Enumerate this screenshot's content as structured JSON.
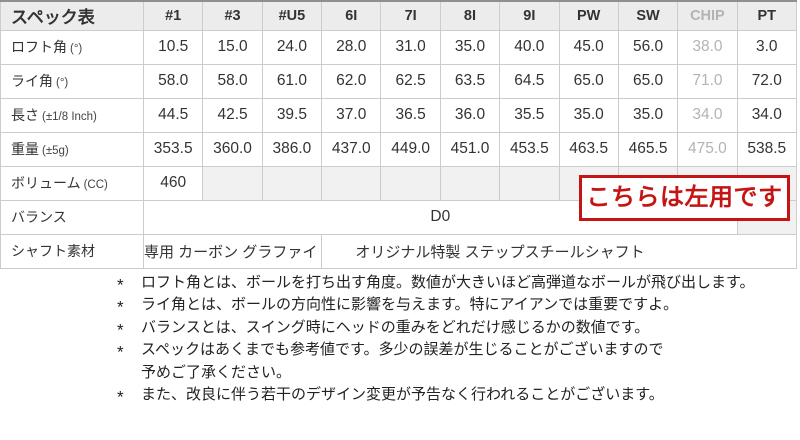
{
  "table": {
    "title": "スペック表",
    "columns": [
      {
        "label": "#1"
      },
      {
        "label": "#3"
      },
      {
        "label": "#U5"
      },
      {
        "label": "6I"
      },
      {
        "label": "7I"
      },
      {
        "label": "8I"
      },
      {
        "label": "9I"
      },
      {
        "label": "PW"
      },
      {
        "label": "SW"
      },
      {
        "label": "CHIP",
        "muted": true
      },
      {
        "label": "PT"
      }
    ],
    "rows": [
      {
        "label": "ロフト角",
        "unit": "(°)",
        "cells": [
          {
            "t": "10.5"
          },
          {
            "t": "15.0"
          },
          {
            "t": "24.0"
          },
          {
            "t": "28.0"
          },
          {
            "t": "31.0"
          },
          {
            "t": "35.0"
          },
          {
            "t": "40.0"
          },
          {
            "t": "45.0"
          },
          {
            "t": "56.0"
          },
          {
            "t": "38.0",
            "muted": true
          },
          {
            "t": "3.0"
          }
        ]
      },
      {
        "label": "ライ角",
        "unit": "(°)",
        "cells": [
          {
            "t": "58.0"
          },
          {
            "t": "58.0"
          },
          {
            "t": "61.0"
          },
          {
            "t": "62.0"
          },
          {
            "t": "62.5"
          },
          {
            "t": "63.5"
          },
          {
            "t": "64.5"
          },
          {
            "t": "65.0"
          },
          {
            "t": "65.0"
          },
          {
            "t": "71.0",
            "muted": true
          },
          {
            "t": "72.0"
          }
        ]
      },
      {
        "label": "長さ",
        "unit": "(±1/8 Inch)",
        "cells": [
          {
            "t": "44.5"
          },
          {
            "t": "42.5"
          },
          {
            "t": "39.5"
          },
          {
            "t": "37.0"
          },
          {
            "t": "36.5"
          },
          {
            "t": "36.0"
          },
          {
            "t": "35.5"
          },
          {
            "t": "35.0"
          },
          {
            "t": "35.0"
          },
          {
            "t": "34.0",
            "muted": true
          },
          {
            "t": "34.0"
          }
        ]
      },
      {
        "label": "重量",
        "unit": "(±5g)",
        "cells": [
          {
            "t": "353.5"
          },
          {
            "t": "360.0"
          },
          {
            "t": "386.0"
          },
          {
            "t": "437.0"
          },
          {
            "t": "449.0"
          },
          {
            "t": "451.0"
          },
          {
            "t": "453.5"
          },
          {
            "t": "463.5"
          },
          {
            "t": "465.5"
          },
          {
            "t": "475.0",
            "muted": true
          },
          {
            "t": "538.5"
          }
        ]
      },
      {
        "label": "ボリューム",
        "unit": "(CC)",
        "cells": [
          {
            "t": "460"
          },
          {
            "t": "",
            "grey": true
          },
          {
            "t": "",
            "grey": true
          },
          {
            "t": "",
            "grey": true
          },
          {
            "t": "",
            "grey": true
          },
          {
            "t": "",
            "grey": true
          },
          {
            "t": "",
            "grey": true
          },
          {
            "t": "",
            "grey": true
          },
          {
            "t": "",
            "grey": true
          },
          {
            "t": "",
            "grey": true
          },
          {
            "t": "",
            "grey": true
          }
        ]
      },
      {
        "label": "バランス",
        "unit": "",
        "cells": [
          {
            "t": "D0",
            "span": 10
          },
          {
            "t": "",
            "span": 1,
            "grey": true
          }
        ]
      },
      {
        "label": "シャフト素材",
        "unit": "",
        "cells": [
          {
            "t": "専用 カーボン グラファイト",
            "span": 3,
            "shaft": true
          },
          {
            "t": "オリジナル特製 ステップスチールシャフト",
            "span": 8,
            "shaft": true
          }
        ]
      }
    ]
  },
  "badge": {
    "text": "こちらは左用です",
    "color": "#c51414"
  },
  "notes": [
    {
      "marker": "*",
      "text": "ロフト角とは、ボールを打ち出す角度。数値が大きいほど高弾道なボールが飛び出します。"
    },
    {
      "marker": "*",
      "text": "ライ角とは、ボールの方向性に影響を与えます。特にアイアンでは重要ですよ。"
    },
    {
      "marker": "*",
      "text": "バランスとは、スイング時にヘッドの重みをどれだけ感じるかの数値です。"
    },
    {
      "marker": "*",
      "text": "スペックはあくまでも参考値です。多少の誤差が生じることがございますので\n予めご了承ください。"
    },
    {
      "marker": "*",
      "text": "また、改良に伴う若干のデザイン変更が予告なく行われることがございます。"
    }
  ]
}
